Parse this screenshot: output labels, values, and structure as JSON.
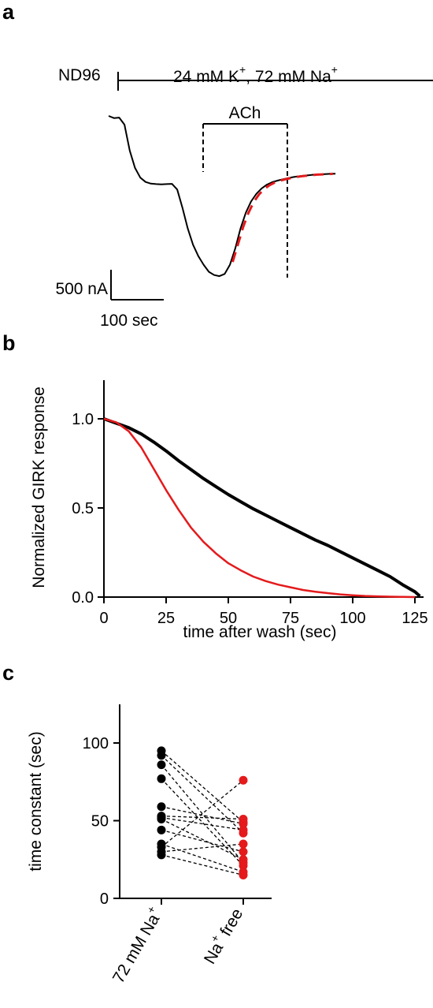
{
  "panels": {
    "a": {
      "letter": "a",
      "solution_nd96": "ND96",
      "solution_high_k_main": "24 mM K",
      "solution_high_k_sup1": "+",
      "solution_high_k_mid": ", 72 mM Na",
      "solution_high_k_sup2": "+",
      "drug_label": "ACh",
      "scale_y_label": "500 nA",
      "scale_x_label": "100 sec"
    },
    "b": {
      "letter": "b"
    },
    "c": {
      "letter": "c"
    }
  },
  "chart_data": [
    {
      "panel": "a",
      "type": "line",
      "series": [
        {
          "color": "#000000",
          "style": "solid",
          "x": [
            0,
            10,
            20,
            30,
            40,
            50,
            60,
            70,
            80,
            90,
            100,
            110,
            120,
            130,
            140,
            150,
            160,
            170,
            180,
            190,
            200,
            210,
            220,
            230,
            240,
            250,
            260,
            270,
            280,
            290,
            300,
            310,
            320,
            330,
            340,
            350,
            360,
            370,
            380,
            390,
            400,
            410,
            420,
            430
          ],
          "y": [
            0,
            40,
            30,
            160,
            640,
            960,
            1140,
            1220,
            1250,
            1260,
            1265,
            1260,
            1255,
            1360,
            1700,
            2080,
            2380,
            2590,
            2750,
            2880,
            2940,
            2960,
            2920,
            2750,
            2450,
            2080,
            1790,
            1580,
            1440,
            1340,
            1270,
            1225,
            1195,
            1170,
            1150,
            1130,
            1115,
            1105,
            1095,
            1085,
            1080,
            1075,
            1070,
            1068
          ]
        },
        {
          "color": "#e41a1c",
          "style": "dashed",
          "x": [
            235,
            245,
            255,
            265,
            275,
            285,
            295,
            305,
            315,
            325,
            335,
            345,
            355,
            365,
            375,
            385,
            395,
            405,
            415,
            425
          ],
          "y": [
            2700,
            2380,
            2050,
            1790,
            1590,
            1450,
            1350,
            1280,
            1230,
            1195,
            1170,
            1150,
            1130,
            1115,
            1105,
            1095,
            1085,
            1080,
            1075,
            1070
          ]
        }
      ],
      "scale_bar": {
        "y": 500,
        "x": 100
      },
      "ach_window": [
        133,
        238
      ]
    },
    {
      "panel": "b",
      "type": "line",
      "xlabel": "time after wash (sec)",
      "ylabel": "Normalized GIRK response",
      "xlim": [
        0,
        128
      ],
      "ylim": [
        0,
        1.2
      ],
      "xticks": [
        "0",
        "25",
        "50",
        "75",
        "100",
        "125"
      ],
      "xtick_values": [
        0,
        25,
        50,
        75,
        100,
        125
      ],
      "yticks": [
        "0.0",
        "0.5",
        "1.0"
      ],
      "ytick_values": [
        0,
        0.5,
        1.0
      ],
      "series": [
        {
          "color": "#000000",
          "x": [
            0,
            5,
            10,
            15,
            20,
            25,
            30,
            35,
            40,
            45,
            50,
            55,
            60,
            65,
            70,
            75,
            80,
            85,
            90,
            95,
            100,
            105,
            110,
            115,
            120,
            125,
            127
          ],
          "y": [
            1.0,
            0.975,
            0.95,
            0.915,
            0.87,
            0.82,
            0.765,
            0.715,
            0.665,
            0.62,
            0.575,
            0.535,
            0.495,
            0.46,
            0.425,
            0.39,
            0.355,
            0.32,
            0.29,
            0.255,
            0.22,
            0.185,
            0.15,
            0.115,
            0.07,
            0.03,
            0.005
          ]
        },
        {
          "color": "#e41a1c",
          "x": [
            0,
            5,
            10,
            15,
            20,
            25,
            30,
            35,
            40,
            45,
            50,
            55,
            60,
            65,
            70,
            75,
            80,
            85,
            90,
            95,
            100,
            105,
            110,
            115,
            120,
            125
          ],
          "y": [
            1.0,
            0.98,
            0.93,
            0.84,
            0.72,
            0.6,
            0.49,
            0.39,
            0.31,
            0.245,
            0.19,
            0.15,
            0.115,
            0.09,
            0.07,
            0.055,
            0.04,
            0.03,
            0.022,
            0.015,
            0.01,
            0.006,
            0.004,
            0.002,
            0.001,
            0.0
          ]
        }
      ]
    },
    {
      "panel": "c",
      "type": "scatter",
      "ylabel": "time constant  (sec)",
      "ylim": [
        0,
        120
      ],
      "yticks": [
        "0",
        "50",
        "100"
      ],
      "ytick_values": [
        0,
        50,
        100
      ],
      "xtick_values": [
        0,
        1
      ],
      "categories": [
        "72 mM Na",
        "Na free"
      ],
      "category_sup": "+",
      "series": [
        {
          "category": "72 mM Na",
          "color": "#000000",
          "values": [
            95,
            92,
            86,
            77,
            59,
            53,
            52,
            51,
            44,
            35,
            33,
            30,
            28
          ]
        },
        {
          "category": "Na free",
          "color": "#e41a1c",
          "values": [
            76,
            51,
            49,
            48,
            44,
            42,
            35,
            30,
            25,
            23,
            21,
            17,
            15
          ]
        }
      ],
      "pairs": [
        [
          95,
          49
        ],
        [
          92,
          42
        ],
        [
          86,
          23
        ],
        [
          77,
          21
        ],
        [
          59,
          48
        ],
        [
          53,
          51
        ],
        [
          52,
          44
        ],
        [
          51,
          25
        ],
        [
          44,
          30
        ],
        [
          35,
          17
        ],
        [
          33,
          76
        ],
        [
          30,
          35
        ],
        [
          28,
          15
        ]
      ]
    }
  ]
}
